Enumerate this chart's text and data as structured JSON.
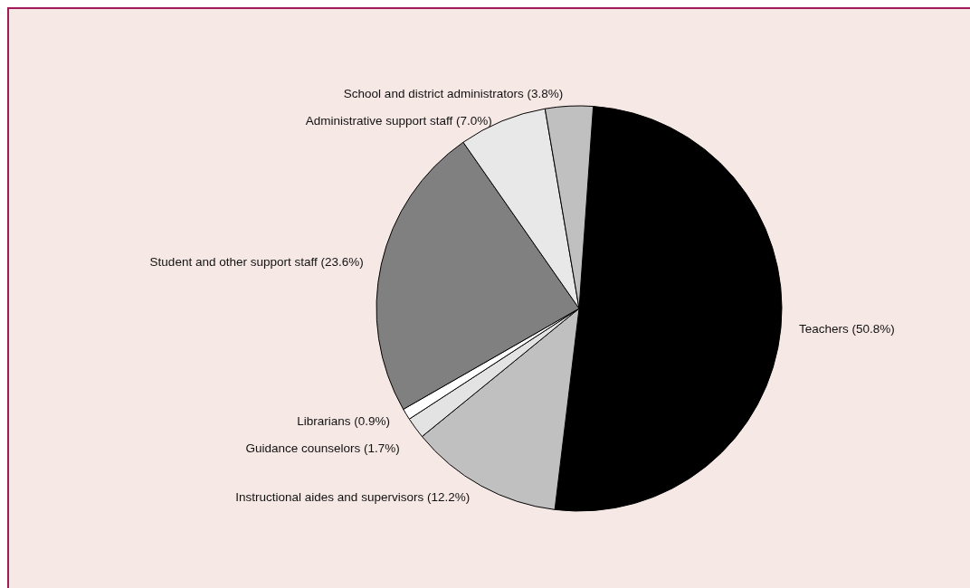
{
  "chart_data": {
    "type": "pie",
    "categories": [
      "Teachers (50.8%)",
      "Instructional aides and supervisors (12.2%)",
      "Guidance counselors (1.7%)",
      "Librarians (0.9%)",
      "Student and other support staff (23.6%)",
      "Administrative support staff (7.0%)",
      "School and district administrators (3.8%)"
    ],
    "values": [
      50.8,
      12.2,
      1.7,
      0.9,
      23.6,
      7.0,
      3.8
    ],
    "colors": [
      "#000000",
      "#c0c0c0",
      "#e3e3e3",
      "#ffffff",
      "#808080",
      "#e8e8e8",
      "#c0c0c0"
    ]
  }
}
